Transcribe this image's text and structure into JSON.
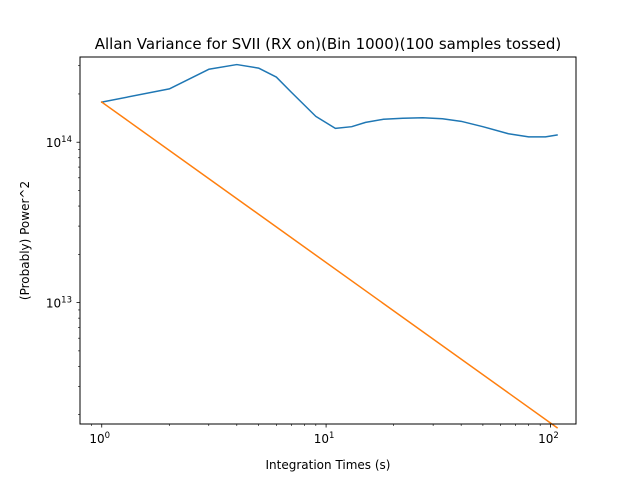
{
  "chart_data": {
    "type": "line",
    "title": "Allan Variance for SVII (RX on)(Bin 1000)(100 samples tossed)",
    "xlabel": "Integration Times (s)",
    "ylabel": "(Probably) Power^2",
    "x_scale": "log",
    "y_scale": "log",
    "xlim": [
      0.8,
      130
    ],
    "ylim": [
      1750000000000.0,
      340000000000000.0
    ],
    "grid": false,
    "legend": "none",
    "x_ticks": [
      {
        "value": 1,
        "base": "10",
        "exp": "0"
      },
      {
        "value": 10,
        "base": "10",
        "exp": "1"
      },
      {
        "value": 100,
        "base": "10",
        "exp": "2"
      }
    ],
    "y_ticks": [
      {
        "value": 10000000000000.0,
        "base": "10",
        "exp": "13"
      },
      {
        "value": 100000000000000.0,
        "base": "10",
        "exp": "14"
      }
    ],
    "series": [
      {
        "color": "#1f77b4",
        "x": [
          1,
          2,
          3,
          4,
          5,
          6,
          7,
          9,
          11,
          13,
          15,
          18,
          22,
          27,
          33,
          40,
          50,
          65,
          80,
          95,
          107
        ],
        "y": [
          178000000000000.0,
          215000000000000.0,
          285000000000000.0,
          305000000000000.0,
          290000000000000.0,
          255000000000000.0,
          205000000000000.0,
          145000000000000.0,
          122000000000000.0,
          125000000000000.0,
          133000000000000.0,
          139000000000000.0,
          141000000000000.0,
          142000000000000.0,
          140000000000000.0,
          135000000000000.0,
          125000000000000.0,
          113000000000000.0,
          108000000000000.0,
          108000000000000.0,
          111000000000000.0
        ]
      },
      {
        "color": "#ff7f0e",
        "x": [
          1,
          107
        ],
        "y": [
          178000000000000.0,
          1660000000000.0
        ]
      }
    ]
  }
}
